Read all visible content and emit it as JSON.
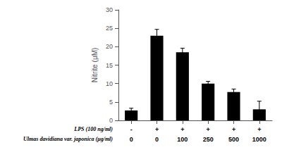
{
  "chart_data": {
    "type": "bar",
    "ylabel": "Nitrite (μM)",
    "values": [
      2.7,
      23.0,
      18.5,
      10.0,
      7.7,
      3.0
    ],
    "errors": [
      0.6,
      1.7,
      1.1,
      0.6,
      0.8,
      2.2
    ],
    "color": "#000000",
    "label_rows": [
      {
        "label": "LPS (100 ng/ml)",
        "labels": [
          "-",
          "+",
          "+",
          "+",
          "+",
          "+"
        ]
      },
      {
        "label": "Ulmas davidiana var. japonica (μg/ml)",
        "labels": [
          "0",
          "0",
          "100",
          "250",
          "500",
          "1000"
        ]
      }
    ],
    "ylim": [
      0,
      30
    ],
    "yticks": [
      0,
      5,
      10,
      15,
      20,
      25,
      30
    ],
    "grid": false
  }
}
